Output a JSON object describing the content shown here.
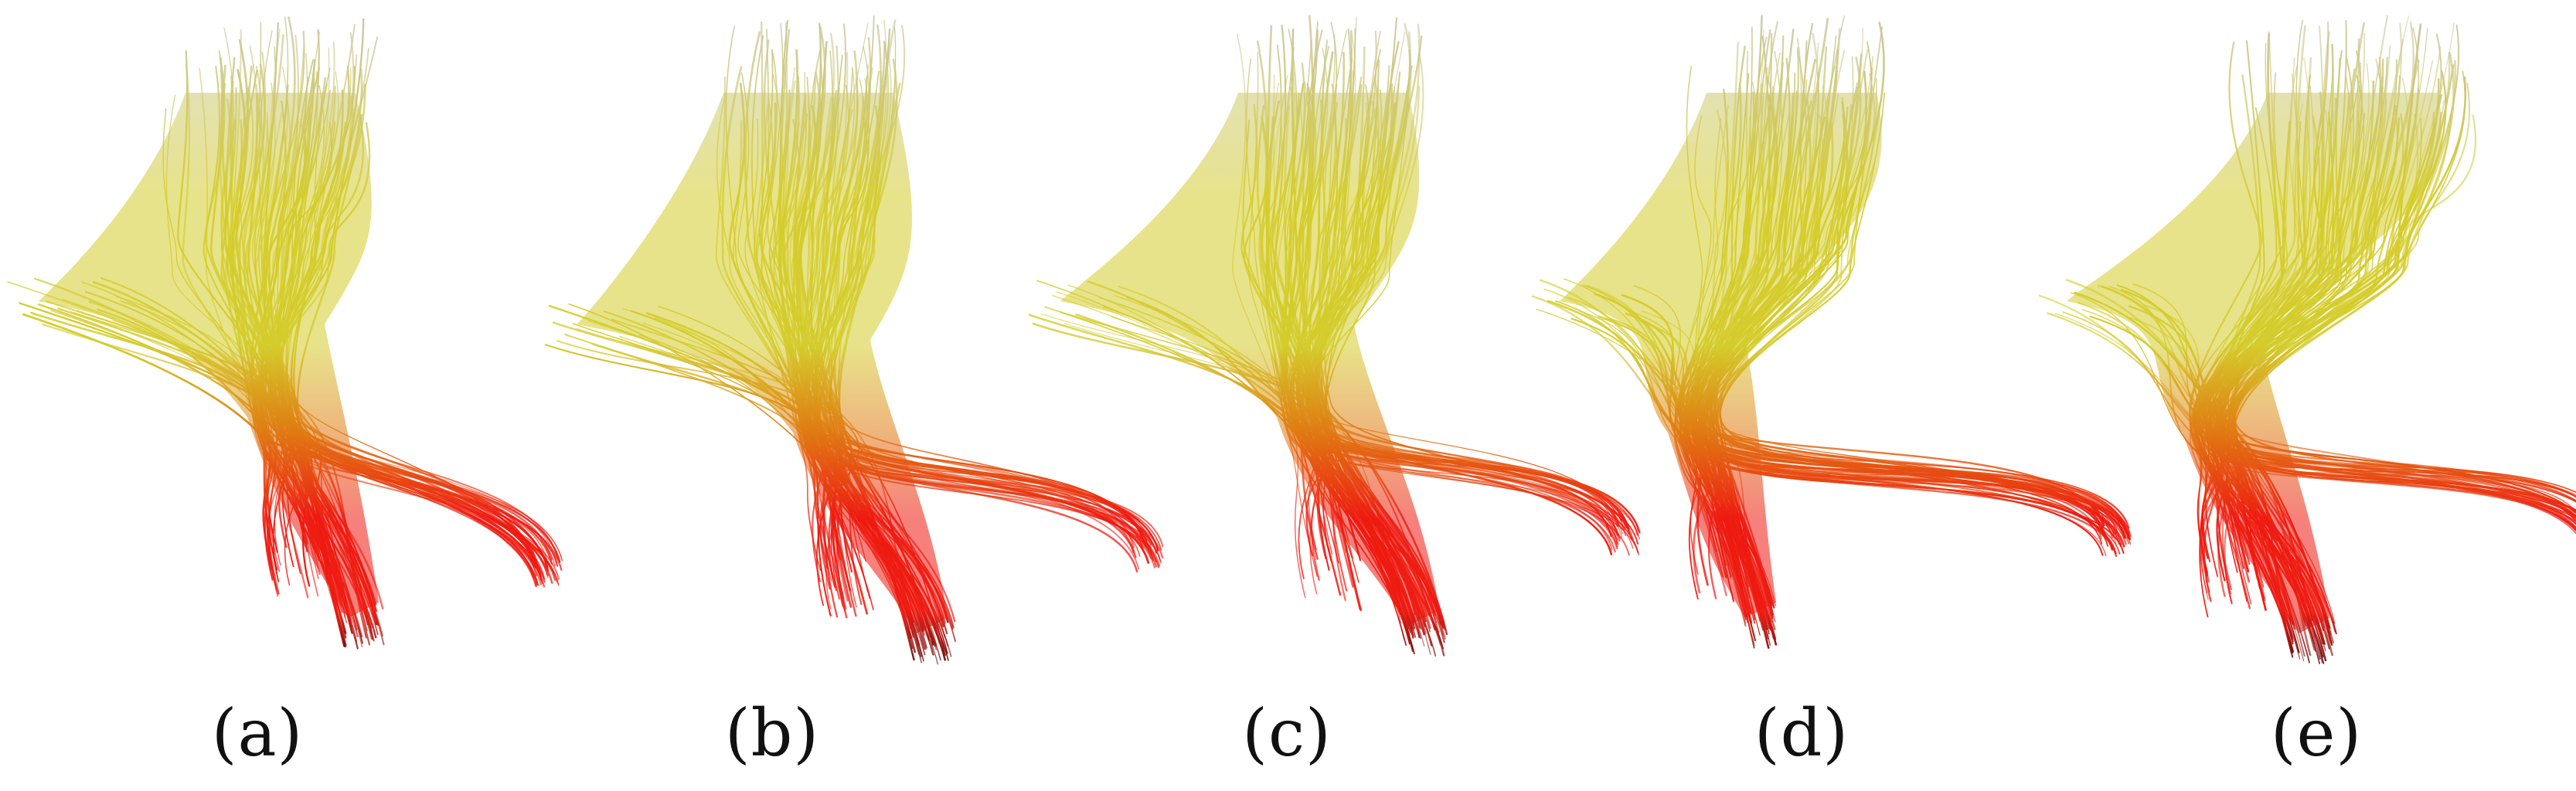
{
  "figure": {
    "panels": [
      {
        "id": "a",
        "label": "(a)"
      },
      {
        "id": "b",
        "label": "(b)"
      },
      {
        "id": "c",
        "label": "(c)"
      },
      {
        "id": "d",
        "label": "(d)"
      },
      {
        "id": "e",
        "label": "(e)"
      }
    ],
    "colors": {
      "top": "#c9c6b0",
      "upper": "#d4cc2a",
      "middle": "#e07a12",
      "lower": "#ee1a10",
      "tips": "#5e0a0a"
    }
  }
}
